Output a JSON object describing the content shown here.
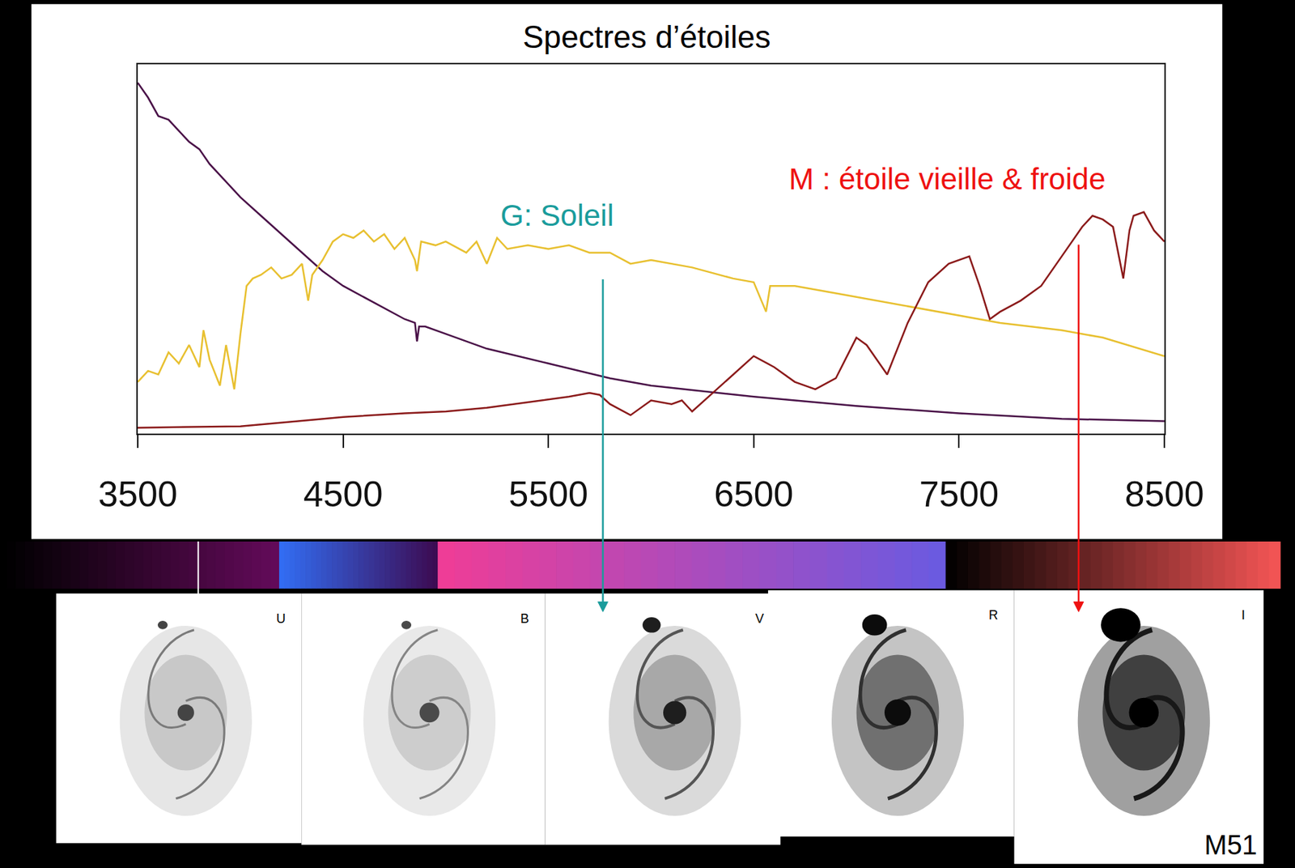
{
  "chart_data": {
    "type": "line",
    "title": "Spectres d’étoiles",
    "xlim": [
      3500,
      8500
    ],
    "xticks": [
      3500,
      4500,
      5500,
      6500,
      7500,
      8500
    ],
    "ylim": [
      0,
      1
    ],
    "yticks": [],
    "tick_labels": "x",
    "grid": false,
    "series": [
      {
        "color": "#4a1248",
        "x": [
          3500,
          3550,
          3600,
          3650,
          3700,
          3750,
          3800,
          3850,
          3900,
          3950,
          4000,
          4100,
          4200,
          4300,
          4400,
          4500,
          4600,
          4700,
          4800,
          4850,
          4860,
          4870,
          4900,
          5000,
          5200,
          5500,
          5800,
          6000,
          6500,
          7000,
          7500,
          8000,
          8500
        ],
        "values": [
          0.95,
          0.91,
          0.86,
          0.85,
          0.82,
          0.79,
          0.77,
          0.73,
          0.7,
          0.67,
          0.64,
          0.59,
          0.54,
          0.49,
          0.44,
          0.4,
          0.37,
          0.34,
          0.31,
          0.3,
          0.25,
          0.29,
          0.29,
          0.27,
          0.23,
          0.19,
          0.15,
          0.13,
          0.1,
          0.075,
          0.055,
          0.04,
          0.034
        ]
      },
      {
        "color": "#e8c030",
        "x": [
          3500,
          3550,
          3600,
          3650,
          3700,
          3750,
          3800,
          3820,
          3850,
          3900,
          3930,
          3970,
          4000,
          4030,
          4060,
          4100,
          4150,
          4200,
          4250,
          4300,
          4330,
          4350,
          4400,
          4450,
          4500,
          4550,
          4600,
          4650,
          4700,
          4750,
          4800,
          4850,
          4860,
          4880,
          4950,
          5000,
          5100,
          5150,
          5200,
          5250,
          5300,
          5400,
          5500,
          5600,
          5700,
          5800,
          5900,
          6000,
          6200,
          6400,
          6500,
          6560,
          6580,
          6700,
          6900,
          7000,
          7200,
          7400,
          7500,
          7700,
          8000,
          8200,
          8500
        ],
        "values": [
          0.14,
          0.17,
          0.16,
          0.22,
          0.19,
          0.24,
          0.18,
          0.28,
          0.2,
          0.13,
          0.24,
          0.12,
          0.27,
          0.4,
          0.42,
          0.43,
          0.45,
          0.42,
          0.43,
          0.46,
          0.36,
          0.43,
          0.47,
          0.52,
          0.54,
          0.53,
          0.55,
          0.52,
          0.54,
          0.5,
          0.53,
          0.47,
          0.44,
          0.52,
          0.51,
          0.52,
          0.49,
          0.52,
          0.46,
          0.53,
          0.5,
          0.51,
          0.5,
          0.51,
          0.49,
          0.49,
          0.46,
          0.47,
          0.45,
          0.42,
          0.41,
          0.33,
          0.4,
          0.4,
          0.38,
          0.37,
          0.35,
          0.33,
          0.32,
          0.3,
          0.28,
          0.26,
          0.21
        ]
      },
      {
        "color": "#8b1a1a",
        "x": [
          3500,
          3800,
          4000,
          4300,
          4500,
          4800,
          5000,
          5200,
          5400,
          5600,
          5700,
          5750,
          5800,
          5900,
          6000,
          6100,
          6150,
          6200,
          6300,
          6400,
          6500,
          6600,
          6700,
          6800,
          6900,
          7000,
          7050,
          7150,
          7250,
          7350,
          7450,
          7550,
          7600,
          7650,
          7700,
          7800,
          7900,
          8000,
          8100,
          8150,
          8200,
          8250,
          8300,
          8330,
          8350,
          8400,
          8450,
          8500
        ],
        "values": [
          0.016,
          0.018,
          0.02,
          0.035,
          0.045,
          0.055,
          0.06,
          0.07,
          0.085,
          0.1,
          0.11,
          0.105,
          0.08,
          0.05,
          0.09,
          0.08,
          0.09,
          0.06,
          0.11,
          0.16,
          0.21,
          0.18,
          0.14,
          0.12,
          0.15,
          0.26,
          0.24,
          0.16,
          0.3,
          0.41,
          0.46,
          0.48,
          0.4,
          0.31,
          0.33,
          0.36,
          0.4,
          0.48,
          0.56,
          0.59,
          0.58,
          0.56,
          0.42,
          0.55,
          0.59,
          0.6,
          0.55,
          0.52
        ]
      }
    ],
    "annotations": [
      {
        "text": "G: Soleil",
        "x": 5543,
        "y": 0.59,
        "color": "#1a9c9c"
      },
      {
        "text": "M : étoile vieille & froide",
        "x": 7442,
        "y": 0.69,
        "color": "#ee1111"
      }
    ],
    "bands": [
      "U",
      "B",
      "V",
      "R",
      "I"
    ],
    "image_label": "M51"
  }
}
